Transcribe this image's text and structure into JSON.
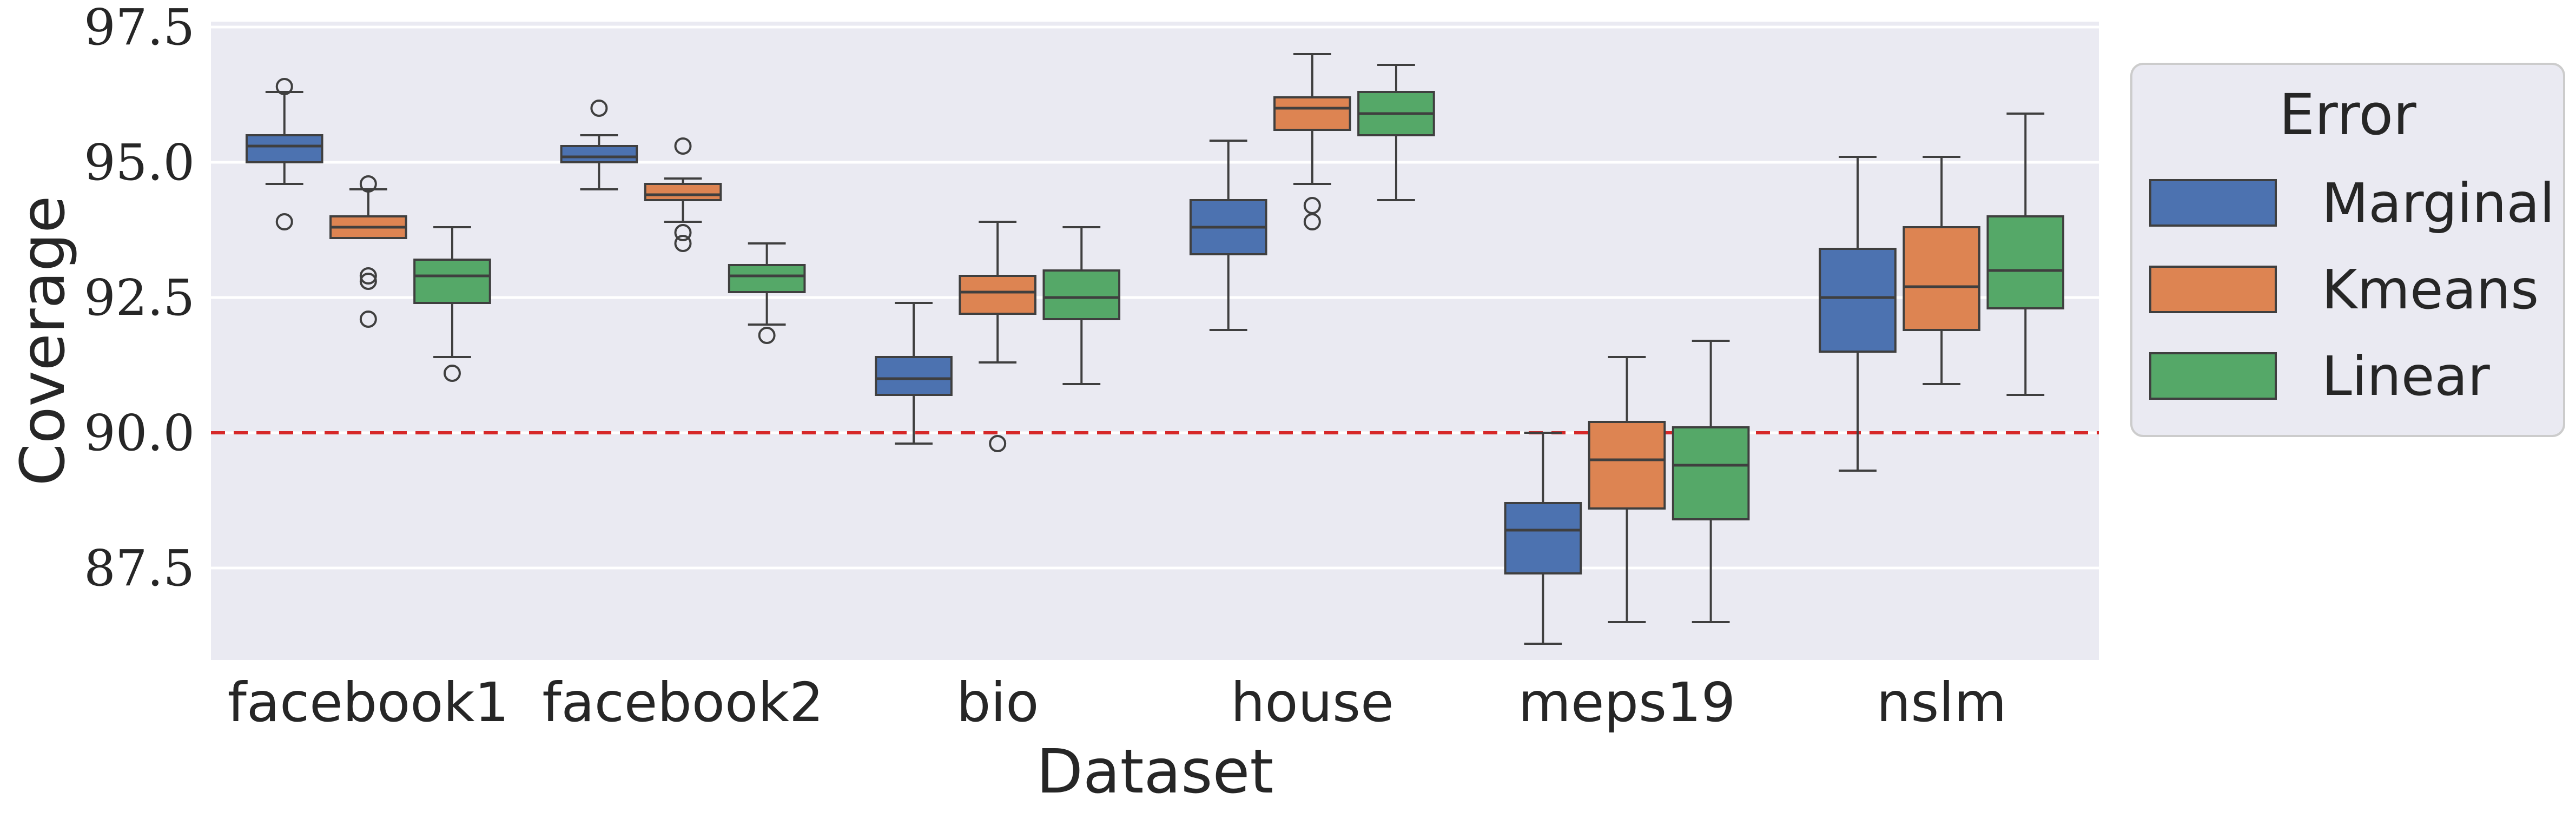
{
  "chart_data": {
    "type": "boxplot",
    "title": "",
    "xlabel": "Dataset",
    "ylabel": "Coverage",
    "ylim": [
      85.8,
      97.6
    ],
    "yticks": [
      "87.5",
      "90.0",
      "92.5",
      "95.0",
      "97.5"
    ],
    "ytick_values": [
      87.5,
      90.0,
      92.5,
      95.0,
      97.5
    ],
    "reference_line": {
      "y": 90.0,
      "style": "dashed",
      "color": "#d62728"
    },
    "grid": true,
    "categories": [
      "facebook1",
      "facebook2",
      "bio",
      "house",
      "meps19",
      "nslm"
    ],
    "legend": {
      "title": "Error",
      "position": "outside-right"
    },
    "series": [
      {
        "name": "Marginal",
        "color": "#4c72b0",
        "boxes": [
          {
            "whislo": 94.6,
            "q1": 95.0,
            "med": 95.3,
            "q3": 95.5,
            "whishi": 96.3,
            "fliers": [
              96.4,
              93.9
            ]
          },
          {
            "whislo": 94.5,
            "q1": 95.0,
            "med": 95.1,
            "q3": 95.3,
            "whishi": 95.5,
            "fliers": [
              96.0
            ]
          },
          {
            "whislo": 89.8,
            "q1": 90.7,
            "med": 91.0,
            "q3": 91.4,
            "whishi": 92.4,
            "fliers": []
          },
          {
            "whislo": 91.9,
            "q1": 93.3,
            "med": 93.8,
            "q3": 94.3,
            "whishi": 95.4,
            "fliers": []
          },
          {
            "whislo": 86.1,
            "q1": 87.4,
            "med": 88.2,
            "q3": 88.7,
            "whishi": 90.0,
            "fliers": []
          },
          {
            "whislo": 89.3,
            "q1": 91.5,
            "med": 92.5,
            "q3": 93.4,
            "whishi": 95.1,
            "fliers": []
          }
        ]
      },
      {
        "name": "Kmeans",
        "color": "#dd8452",
        "boxes": [
          {
            "whislo": 93.6,
            "q1": 93.6,
            "med": 93.8,
            "q3": 94.0,
            "whishi": 94.5,
            "fliers": [
              94.6,
              92.8,
              92.9,
              92.1
            ]
          },
          {
            "whislo": 93.9,
            "q1": 94.3,
            "med": 94.4,
            "q3": 94.6,
            "whishi": 94.7,
            "fliers": [
              95.3,
              93.7,
              93.5
            ]
          },
          {
            "whislo": 91.3,
            "q1": 92.2,
            "med": 92.6,
            "q3": 92.9,
            "whishi": 93.9,
            "fliers": [
              89.8
            ]
          },
          {
            "whislo": 94.6,
            "q1": 95.6,
            "med": 96.0,
            "q3": 96.2,
            "whishi": 97.0,
            "fliers": [
              94.2,
              93.9
            ]
          },
          {
            "whislo": 86.5,
            "q1": 88.6,
            "med": 89.5,
            "q3": 90.2,
            "whishi": 91.4,
            "fliers": []
          },
          {
            "whislo": 90.9,
            "q1": 91.9,
            "med": 92.7,
            "q3": 93.8,
            "whishi": 95.1,
            "fliers": []
          }
        ]
      },
      {
        "name": "Linear",
        "color": "#55a868",
        "boxes": [
          {
            "whislo": 91.4,
            "q1": 92.4,
            "med": 92.9,
            "q3": 93.2,
            "whishi": 93.8,
            "fliers": [
              91.1
            ]
          },
          {
            "whislo": 92.0,
            "q1": 92.6,
            "med": 92.9,
            "q3": 93.1,
            "whishi": 93.5,
            "fliers": [
              91.8
            ]
          },
          {
            "whislo": 90.9,
            "q1": 92.1,
            "med": 92.5,
            "q3": 93.0,
            "whishi": 93.8,
            "fliers": []
          },
          {
            "whislo": 94.3,
            "q1": 95.5,
            "med": 95.9,
            "q3": 96.3,
            "whishi": 96.8,
            "fliers": []
          },
          {
            "whislo": 86.5,
            "q1": 88.4,
            "med": 89.4,
            "q3": 90.1,
            "whishi": 91.7,
            "fliers": []
          },
          {
            "whislo": 90.7,
            "q1": 92.3,
            "med": 93.0,
            "q3": 94.0,
            "whishi": 95.9,
            "fliers": []
          }
        ]
      }
    ]
  }
}
